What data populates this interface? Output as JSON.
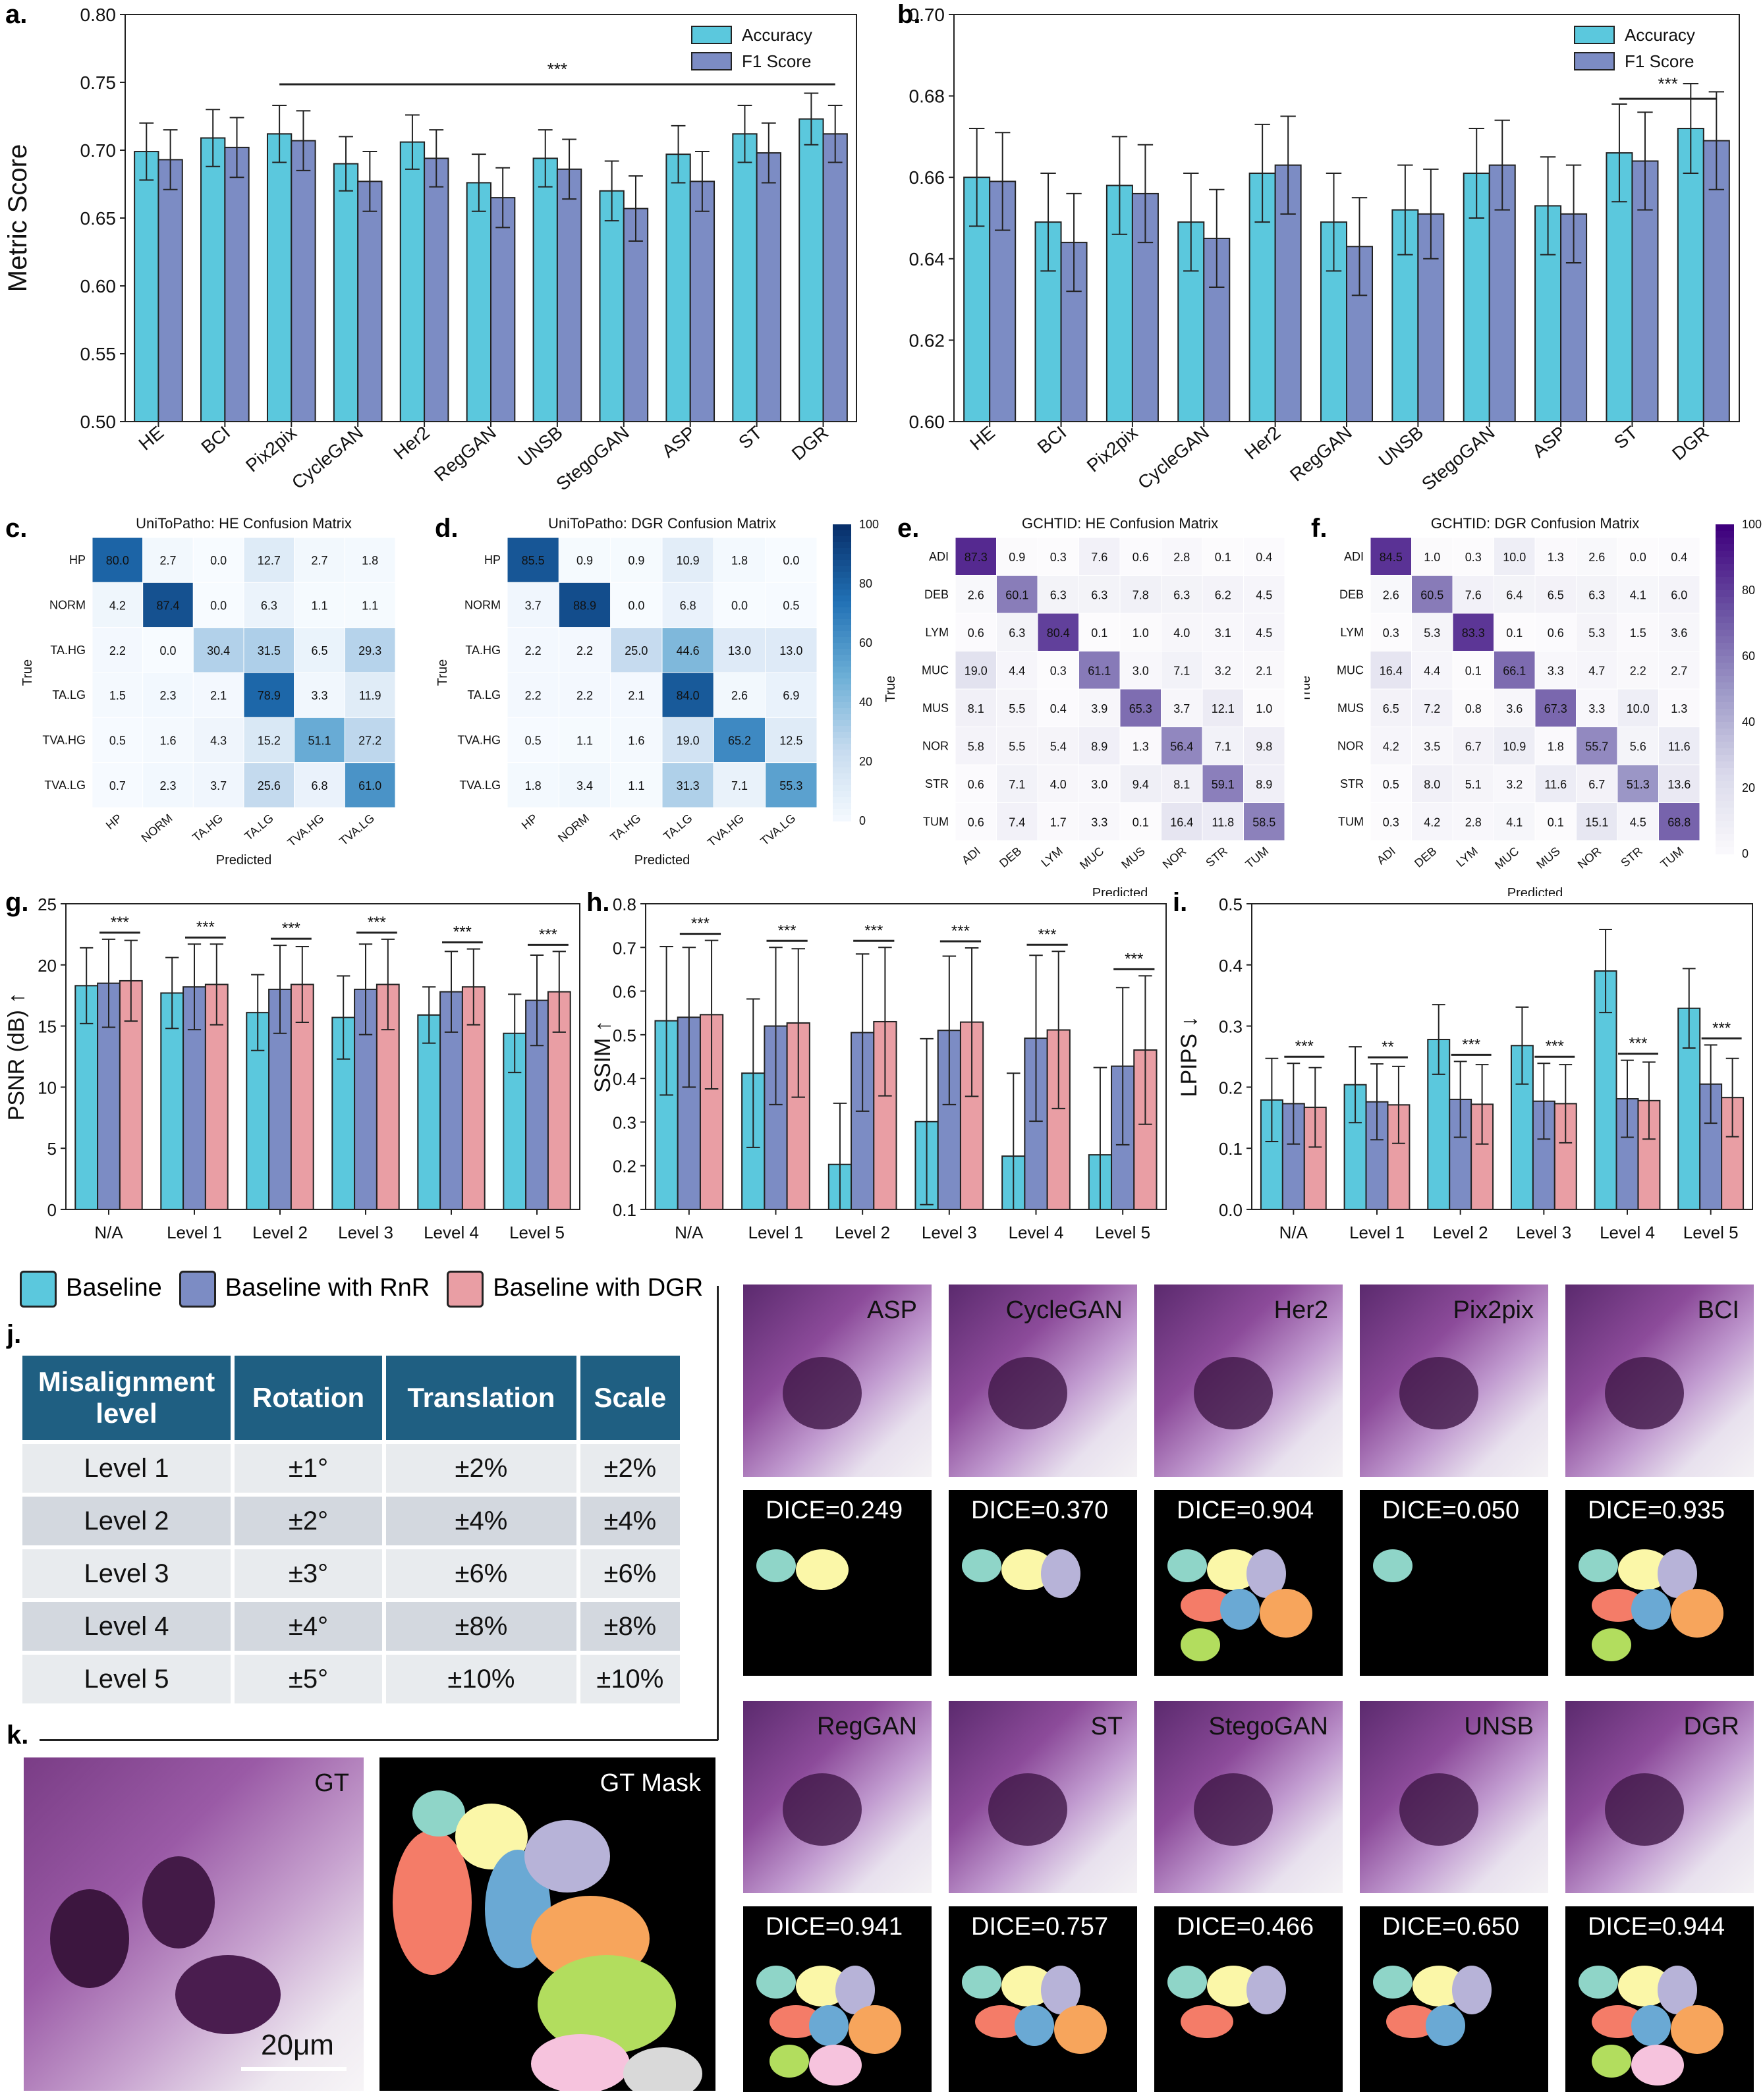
{
  "chart_data": [
    {
      "id": "a",
      "type": "bar",
      "letter": "a.",
      "ylabel": "Metric Score",
      "ylim": [
        0.5,
        0.8
      ],
      "yticks": [
        "0.50",
        "0.55",
        "0.60",
        "0.65",
        "0.70",
        "0.75",
        "0.80"
      ],
      "categories": [
        "HE",
        "BCI",
        "Pix2pix",
        "CycleGAN",
        "Her2",
        "RegGAN",
        "UNSB",
        "StegoGAN",
        "ASP",
        "ST",
        "DGR"
      ],
      "series": [
        {
          "name": "Accuracy",
          "color": "#5bc8dd",
          "values": [
            0.699,
            0.709,
            0.712,
            0.69,
            0.706,
            0.676,
            0.694,
            0.67,
            0.697,
            0.712,
            0.723
          ],
          "err": [
            0.021,
            0.021,
            0.021,
            0.02,
            0.02,
            0.021,
            0.021,
            0.022,
            0.021,
            0.021,
            0.019
          ]
        },
        {
          "name": "F1 Score",
          "color": "#7c8cc4",
          "values": [
            0.693,
            0.702,
            0.707,
            0.677,
            0.694,
            0.665,
            0.686,
            0.657,
            0.677,
            0.698,
            0.712
          ],
          "err": [
            0.022,
            0.022,
            0.022,
            0.022,
            0.021,
            0.022,
            0.022,
            0.024,
            0.022,
            0.022,
            0.021
          ]
        }
      ],
      "sig": {
        "label": "***",
        "from": 2,
        "to": 10
      }
    },
    {
      "id": "b",
      "type": "bar",
      "letter": "b.",
      "ylabel": "",
      "ylim": [
        0.6,
        0.7
      ],
      "yticks": [
        "0.60",
        "0.62",
        "0.64",
        "0.66",
        "0.68",
        "0.70"
      ],
      "categories": [
        "HE",
        "BCI",
        "Pix2pix",
        "CycleGAN",
        "Her2",
        "RegGAN",
        "UNSB",
        "StegoGAN",
        "ASP",
        "ST",
        "DGR"
      ],
      "series": [
        {
          "name": "Accuracy",
          "color": "#5bc8dd",
          "values": [
            0.66,
            0.649,
            0.658,
            0.649,
            0.661,
            0.649,
            0.652,
            0.661,
            0.653,
            0.666,
            0.672
          ],
          "err": [
            0.012,
            0.012,
            0.012,
            0.012,
            0.012,
            0.012,
            0.011,
            0.011,
            0.012,
            0.012,
            0.011
          ]
        },
        {
          "name": "F1 Score",
          "color": "#7c8cc4",
          "values": [
            0.659,
            0.644,
            0.656,
            0.645,
            0.663,
            0.643,
            0.651,
            0.663,
            0.651,
            0.664,
            0.669
          ],
          "err": [
            0.012,
            0.012,
            0.012,
            0.012,
            0.012,
            0.012,
            0.011,
            0.011,
            0.012,
            0.012,
            0.012
          ]
        }
      ],
      "sig": {
        "label": "***",
        "from": 9,
        "to": 10
      }
    },
    {
      "id": "c",
      "type": "heatmap",
      "letter": "c.",
      "title": "UniToPatho: HE Confusion Matrix",
      "labels": [
        "HP",
        "NORM",
        "TA.HG",
        "TA.LG",
        "TVA.HG",
        "TVA.LG"
      ],
      "xlabel": "Predicted",
      "ylabel": "True",
      "palette": "blue",
      "matrix": [
        [
          80.0,
          2.7,
          0.0,
          12.7,
          2.7,
          1.8
        ],
        [
          4.2,
          87.4,
          0.0,
          6.3,
          1.1,
          1.1
        ],
        [
          2.2,
          0.0,
          30.4,
          31.5,
          6.5,
          29.3
        ],
        [
          1.5,
          2.3,
          2.1,
          78.9,
          3.3,
          11.9
        ],
        [
          0.5,
          1.6,
          4.3,
          15.2,
          51.1,
          27.2
        ],
        [
          0.7,
          2.3,
          3.7,
          25.6,
          6.8,
          61.0
        ]
      ]
    },
    {
      "id": "d",
      "type": "heatmap",
      "letter": "d.",
      "title": "UniToPatho: DGR Confusion Matrix",
      "labels": [
        "HP",
        "NORM",
        "TA.HG",
        "TA.LG",
        "TVA.HG",
        "TVA.LG"
      ],
      "xlabel": "Predicted",
      "ylabel": "True",
      "palette": "blue",
      "colorbar": [
        "0",
        "20",
        "40",
        "60",
        "80",
        "100"
      ],
      "matrix": [
        [
          85.5,
          0.9,
          0.9,
          10.9,
          1.8,
          0.0
        ],
        [
          3.7,
          88.9,
          0.0,
          6.8,
          0.0,
          0.5
        ],
        [
          2.2,
          2.2,
          25.0,
          44.6,
          13.0,
          13.0
        ],
        [
          2.2,
          2.2,
          2.1,
          84.0,
          2.6,
          6.9
        ],
        [
          0.5,
          1.1,
          1.6,
          19.0,
          65.2,
          12.5
        ],
        [
          1.8,
          3.4,
          1.1,
          31.3,
          7.1,
          55.3
        ]
      ]
    },
    {
      "id": "e",
      "type": "heatmap",
      "letter": "e.",
      "title": "GCHTID: HE Confusion Matrix",
      "labels": [
        "ADI",
        "DEB",
        "LYM",
        "MUC",
        "MUS",
        "NOR",
        "STR",
        "TUM"
      ],
      "xlabel": "Predicted",
      "ylabel": "True",
      "palette": "purple",
      "matrix": [
        [
          87.3,
          0.9,
          0.3,
          7.6,
          0.6,
          2.8,
          0.1,
          0.4
        ],
        [
          2.6,
          60.1,
          6.3,
          6.3,
          7.8,
          6.3,
          6.2,
          4.5
        ],
        [
          0.6,
          6.3,
          80.4,
          0.1,
          1.0,
          4.0,
          3.1,
          4.5
        ],
        [
          19.0,
          4.4,
          0.3,
          61.1,
          3.0,
          7.1,
          3.2,
          2.1
        ],
        [
          8.1,
          5.5,
          0.4,
          3.9,
          65.3,
          3.7,
          12.1,
          1.0
        ],
        [
          5.8,
          5.5,
          5.4,
          8.9,
          1.3,
          56.4,
          7.1,
          9.8
        ],
        [
          0.6,
          7.1,
          4.0,
          3.0,
          9.4,
          8.1,
          59.1,
          8.9
        ],
        [
          0.6,
          7.4,
          1.7,
          3.3,
          0.1,
          16.4,
          11.8,
          58.5
        ]
      ]
    },
    {
      "id": "f",
      "type": "heatmap",
      "letter": "f.",
      "title": "GCHTID: DGR Confusion Matrix",
      "labels": [
        "ADI",
        "DEB",
        "LYM",
        "MUC",
        "MUS",
        "NOR",
        "STR",
        "TUM"
      ],
      "xlabel": "Predicted",
      "ylabel": "True",
      "palette": "purple",
      "colorbar": [
        "0",
        "20",
        "40",
        "60",
        "80",
        "100"
      ],
      "matrix": [
        [
          84.5,
          1.0,
          0.3,
          10.0,
          1.3,
          2.6,
          0.0,
          0.4
        ],
        [
          2.6,
          60.5,
          7.6,
          6.4,
          6.5,
          6.3,
          4.1,
          6.0
        ],
        [
          0.3,
          5.3,
          83.3,
          0.1,
          0.6,
          5.3,
          1.5,
          3.6
        ],
        [
          16.4,
          4.4,
          0.1,
          66.1,
          3.3,
          4.7,
          2.2,
          2.7
        ],
        [
          6.5,
          7.2,
          0.8,
          3.6,
          67.3,
          3.3,
          10.0,
          1.3
        ],
        [
          4.2,
          3.5,
          6.7,
          10.9,
          1.8,
          55.7,
          5.6,
          11.6
        ],
        [
          0.5,
          8.0,
          5.1,
          3.2,
          11.6,
          6.7,
          51.3,
          13.6
        ],
        [
          0.3,
          4.2,
          2.8,
          4.1,
          0.1,
          15.1,
          4.5,
          68.8
        ]
      ]
    },
    {
      "id": "g",
      "type": "bar",
      "letter": "g.",
      "ylabel": "PSNR (dB) ↑",
      "ylim": [
        0,
        25
      ],
      "yticks": [
        "0",
        "5",
        "10",
        "15",
        "20",
        "25"
      ],
      "categories": [
        "N/A",
        "Level 1",
        "Level 2",
        "Level 3",
        "Level 4",
        "Level 5"
      ],
      "series": [
        {
          "name": "Baseline",
          "color": "#5bc8dd",
          "values": [
            18.3,
            17.7,
            16.1,
            15.7,
            15.9,
            14.4
          ],
          "err": [
            3.1,
            2.9,
            3.1,
            3.4,
            2.3,
            3.2
          ]
        },
        {
          "name": "Baseline with RnR",
          "color": "#7c8cc4",
          "values": [
            18.5,
            18.2,
            18.0,
            18.0,
            17.8,
            17.1
          ],
          "err": [
            3.6,
            3.5,
            3.6,
            3.7,
            3.3,
            3.7
          ]
        },
        {
          "name": "Baseline with DGR",
          "color": "#e99ea4",
          "values": [
            18.7,
            18.4,
            18.4,
            18.4,
            18.2,
            17.8
          ],
          "err": [
            3.3,
            3.3,
            3.1,
            3.7,
            3.1,
            3.3
          ]
        }
      ],
      "sig_labels": [
        "***",
        "***",
        "***",
        "***",
        "***",
        "***"
      ]
    },
    {
      "id": "h",
      "type": "bar",
      "letter": "h.",
      "ylabel": "SSIM ↑",
      "ylim": [
        0.1,
        0.8
      ],
      "yticks": [
        "0.1",
        "0.2",
        "0.3",
        "0.4",
        "0.5",
        "0.6",
        "0.7",
        "0.8"
      ],
      "categories": [
        "N/A",
        "Level 1",
        "Level 2",
        "Level 3",
        "Level 4",
        "Level 5"
      ],
      "series": [
        {
          "name": "Baseline",
          "color": "#5bc8dd",
          "values": [
            0.532,
            0.412,
            0.203,
            0.301,
            0.222,
            0.225
          ],
          "err": [
            0.17,
            0.17,
            0.14,
            0.19,
            0.19,
            0.2
          ]
        },
        {
          "name": "Baseline with RnR",
          "color": "#7c8cc4",
          "values": [
            0.54,
            0.52,
            0.505,
            0.51,
            0.492,
            0.428
          ],
          "err": [
            0.16,
            0.18,
            0.18,
            0.17,
            0.19,
            0.18
          ]
        },
        {
          "name": "Baseline with DGR",
          "color": "#e99ea4",
          "values": [
            0.546,
            0.527,
            0.53,
            0.529,
            0.511,
            0.465
          ],
          "err": [
            0.17,
            0.17,
            0.17,
            0.17,
            0.18,
            0.17
          ]
        }
      ],
      "sig_labels": [
        "***",
        "***",
        "***",
        "***",
        "***",
        "***"
      ]
    },
    {
      "id": "i",
      "type": "bar",
      "letter": "i.",
      "ylabel": "LPIPS ↓",
      "ylim": [
        0.0,
        0.5
      ],
      "yticks": [
        "0.0",
        "0.1",
        "0.2",
        "0.3",
        "0.4",
        "0.5"
      ],
      "categories": [
        "N/A",
        "Level 1",
        "Level 2",
        "Level 3",
        "Level 4",
        "Level 5"
      ],
      "series": [
        {
          "name": "Baseline",
          "color": "#5bc8dd",
          "values": [
            0.179,
            0.204,
            0.278,
            0.268,
            0.39,
            0.329
          ],
          "err": [
            0.068,
            0.062,
            0.057,
            0.063,
            0.068,
            0.065
          ]
        },
        {
          "name": "Baseline with RnR",
          "color": "#7c8cc4",
          "values": [
            0.173,
            0.176,
            0.18,
            0.177,
            0.181,
            0.205
          ],
          "err": [
            0.066,
            0.062,
            0.062,
            0.062,
            0.063,
            0.064
          ]
        },
        {
          "name": "Baseline with DGR",
          "color": "#e99ea4",
          "values": [
            0.167,
            0.171,
            0.172,
            0.173,
            0.178,
            0.183
          ],
          "err": [
            0.065,
            0.063,
            0.065,
            0.064,
            0.063,
            0.064
          ]
        }
      ],
      "sig_labels": [
        "***",
        "**",
        "***",
        "***",
        "***",
        "***"
      ]
    }
  ],
  "legend_bottom": [
    "Baseline",
    "Baseline with RnR",
    "Baseline with DGR"
  ],
  "table": {
    "letter": "j.",
    "headers": [
      "Misalignment level",
      "Rotation",
      "Translation",
      "Scale"
    ],
    "rows": [
      [
        "Level 1",
        "±1°",
        "±2%",
        "±2%"
      ],
      [
        "Level 2",
        "±2°",
        "±4%",
        "±4%"
      ],
      [
        "Level 3",
        "±3°",
        "±6%",
        "±6%"
      ],
      [
        "Level 4",
        "±4°",
        "±8%",
        "±8%"
      ],
      [
        "Level 5",
        "±5°",
        "±10%",
        "±10%"
      ]
    ]
  },
  "images": {
    "letter": "k.",
    "gt_label": "GT",
    "gt_mask_label": "GT Mask",
    "scale_bar": "20μm",
    "row1_labels": [
      "ASP",
      "CycleGAN",
      "Her2",
      "Pix2pix",
      "BCI"
    ],
    "row1_dice": [
      "DICE=0.249",
      "DICE=0.370",
      "DICE=0.904",
      "DICE=0.050",
      "DICE=0.935"
    ],
    "row2_labels": [
      "RegGAN",
      "ST",
      "StegoGAN",
      "UNSB",
      "DGR"
    ],
    "row2_dice": [
      "DICE=0.941",
      "DICE=0.757",
      "DICE=0.466",
      "DICE=0.650",
      "DICE=0.944"
    ]
  }
}
